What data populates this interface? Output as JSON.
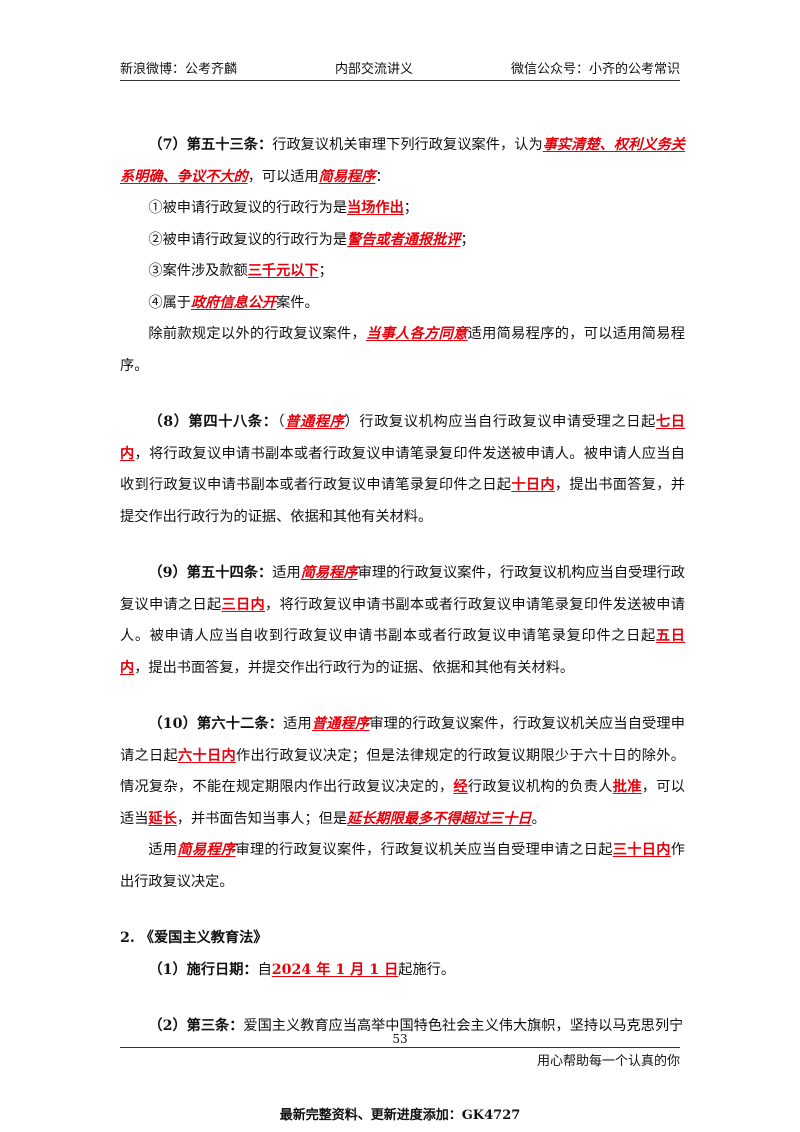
{
  "header": {
    "left": "新浪微博：公考齐麟",
    "center": "内部交流讲义",
    "right": "微信公众号：小齐的公考常识"
  },
  "s7": {
    "lead": "（7）第五十三条：",
    "t1": "行政复议机关审理下列行政复议案件，认为",
    "r1": "事实清楚、权利义务关系明确、争议不大的",
    "t2": "，可以适用",
    "r2": "简易程序",
    "t3": "：",
    "i1_a": "①被申请行政复议的行政行为是",
    "i1_r": "当场作出",
    "i1_b": "；",
    "i2_a": "②被申请行政复议的行政行为是",
    "i2_r": "警告或者通报批评",
    "i2_b": "；",
    "i3_a": "③案件涉及款额",
    "i3_r": "三千元以下",
    "i3_b": "；",
    "i4_a": "④属于",
    "i4_r": "政府信息公开",
    "i4_b": "案件。",
    "last_a": "除前款规定以外的行政复议案件，",
    "last_r": "当事人各方同意",
    "last_b": "适用简易程序的，可以适用简易程序。"
  },
  "s8": {
    "lead": "（8）第四十八条：",
    "t0": "（",
    "r0": "普通程序",
    "t1": "）行政复议机构应当自行政复议申请受理之日起",
    "r1": "七日内",
    "t2": "，将行政复议申请书副本或者行政复议申请笔录复印件发送被申请人。被申请人应当自收到行政复议申请书副本或者行政复议申请笔录复印件之日起",
    "r2": "十日内",
    "t3": "，提出书面答复，并提交作出行政行为的证据、依据和其他有关材料。"
  },
  "s9": {
    "lead": "（9）第五十四条：",
    "t0": "适用",
    "r0": "简易程序",
    "t1": "审理的行政复议案件，行政复议机构应当自受理行政复议申请之日起",
    "r1": "三日内",
    "t2": "，将行政复议申请书副本或者行政复议申请笔录复印件发送被申请人。被申请人应当自收到行政复议申请书副本或者行政复议申请笔录复印件之日起",
    "r2": "五日内",
    "t3": "，提出书面答复，并提交作出行政行为的证据、依据和其他有关材料。"
  },
  "s10": {
    "lead": "（10）第六十二条：",
    "t0": "适用",
    "r0": "普通程序",
    "t1": "审理的行政复议案件，行政复议机关应当自受理申请之日起",
    "r1": "六十日内",
    "t2": "作出行政复议决定；但是法律规定的行政复议期限少于六十日的除外。情况复杂，不能在规定期限内作出行政复议决定的，",
    "r2": "经",
    "t3": "行政复议机构的负责人",
    "r3": "批准",
    "t4": "，可以适当",
    "r4": "延长",
    "t5": "，并书面告知当事人；但是",
    "r5": "延长期限最多不得超过三十日",
    "t6": "。",
    "p2_a": "适用",
    "p2_r": "简易程序",
    "p2_b": "审理的行政复议案件，行政复议机关应当自受理申请之日起",
    "p2_r2": "三十日内",
    "p2_c": "作出行政复议决定。"
  },
  "law2": {
    "heading": "2. 《爱国主义教育法》",
    "d_lead": "（1）施行日期：",
    "d_a": "自",
    "d_r": "2024 年 1 月 1 日",
    "d_b": "起施行。",
    "a3_lead": "（2）第三条：",
    "a3_text": "爱国主义教育应当高举中国特色社会主义伟大旗帜，坚持以马克思列宁"
  },
  "footer": {
    "page": "53",
    "slogan": "用心帮助每一个认真的你",
    "note": "最新完整资料、更新进度添加：GK4727"
  },
  "colors": {
    "accent_red": "#e8000b"
  }
}
